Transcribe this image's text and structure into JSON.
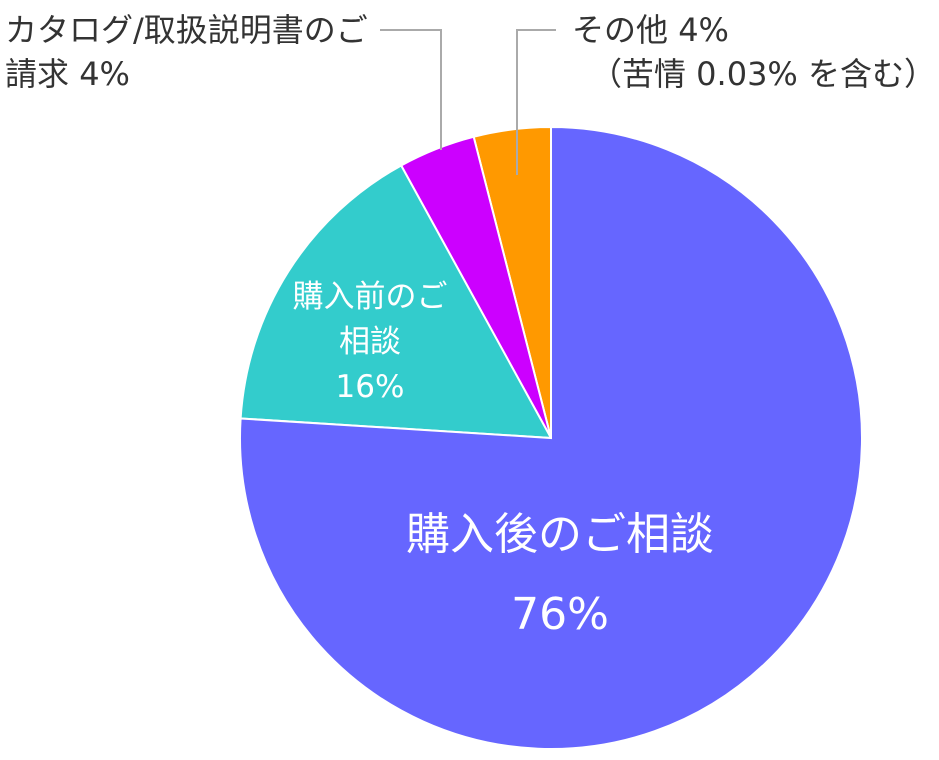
{
  "chart_data": {
    "type": "pie",
    "categories": [
      "購入後のご相談",
      "購入前のご相談",
      "カタログ/取扱説明書のご請求",
      "その他"
    ],
    "values": [
      76,
      16,
      4,
      4
    ],
    "value_labels": [
      "76%",
      "16%",
      "4%",
      "4%"
    ],
    "colors": [
      "#6666ff",
      "#33cccc",
      "#cc00ff",
      "#ff9900"
    ],
    "annotation": "（苦情 0.03% を含む）"
  }
}
